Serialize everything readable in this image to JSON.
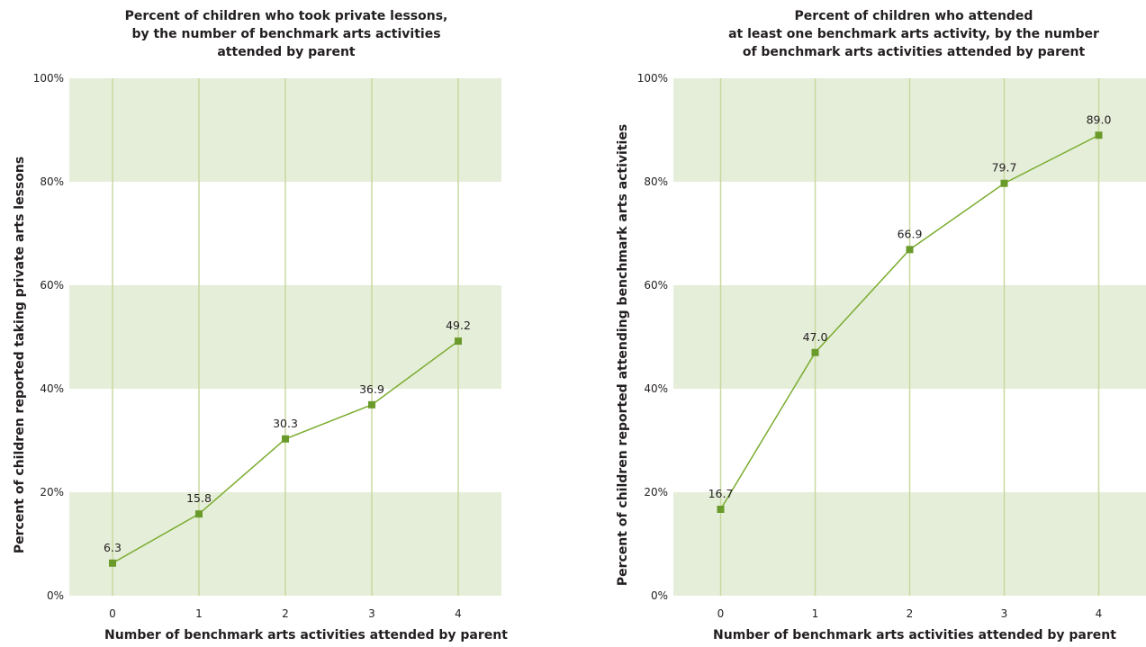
{
  "colors": {
    "band": "#e5eed9",
    "gridline": "#c9d99f",
    "line": "#7aac2f",
    "marker": "#6a9b2a"
  },
  "chart_data": [
    {
      "type": "line",
      "title_lines": [
        "Percent of children who took private lessons,",
        "by the number of benchmark arts activities",
        "attended by parent"
      ],
      "xlabel": "Number of benchmark arts activities attended by parent",
      "ylabel": "Percent of children reported taking private arts lessons",
      "categories": [
        "0",
        "1",
        "2",
        "3",
        "4"
      ],
      "values": [
        6.3,
        15.8,
        30.3,
        36.9,
        49.2
      ],
      "value_labels": [
        "6.3",
        "15.8",
        "30.3",
        "36.9",
        "49.2"
      ],
      "ylim": [
        0,
        100
      ],
      "yticks": [
        0,
        20,
        40,
        60,
        80,
        100
      ],
      "ytick_labels": [
        "0%",
        "20%",
        "40%",
        "60%",
        "80%",
        "100%"
      ],
      "grid": true,
      "legend": "none"
    },
    {
      "type": "line",
      "title_lines": [
        "Percent of children who attended",
        "at least one benchmark arts activity, by the number",
        "of benchmark arts activities attended by parent"
      ],
      "xlabel": "Number of benchmark arts activities attended by parent",
      "ylabel": "Percent of children reported attending benchmark arts activities",
      "categories": [
        "0",
        "1",
        "2",
        "3",
        "4"
      ],
      "values": [
        16.7,
        47.0,
        66.9,
        79.7,
        89.0
      ],
      "value_labels": [
        "16.7",
        "47.0",
        "66.9",
        "79.7",
        "89.0"
      ],
      "ylim": [
        0,
        100
      ],
      "yticks": [
        0,
        20,
        40,
        60,
        80,
        100
      ],
      "ytick_labels": [
        "0%",
        "20%",
        "40%",
        "60%",
        "80%",
        "100%"
      ],
      "grid": true,
      "legend": "none"
    }
  ]
}
